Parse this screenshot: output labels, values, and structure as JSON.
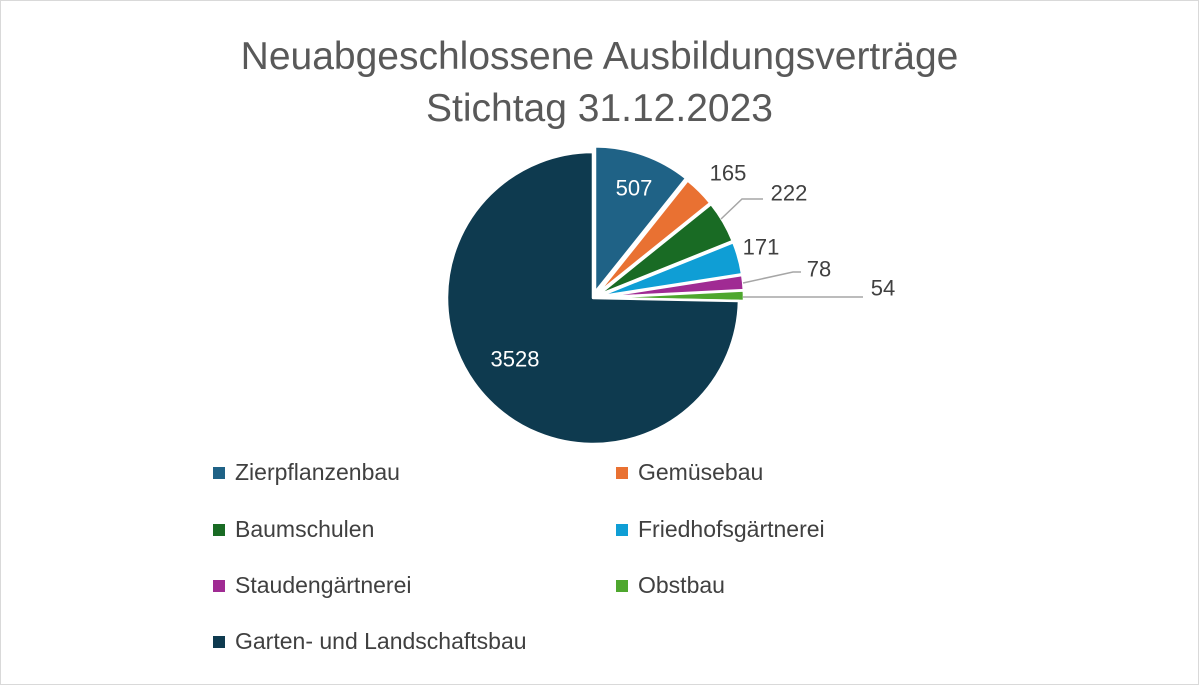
{
  "title": "Neuabgeschlossene Ausbildungsverträge",
  "subtitle": "Stichtag 31.12.2023",
  "chart_data": {
    "type": "pie",
    "title": "Neuabgeschlossene Ausbildungsverträge",
    "subtitle": "Stichtag 31.12.2023",
    "legend_position": "bottom",
    "slices": [
      {
        "label": "Zierpflanzenbau",
        "value": 507,
        "color": "#1f6286"
      },
      {
        "label": "Gemüsebau",
        "value": 165,
        "color": "#e97132"
      },
      {
        "label": "Baumschulen",
        "value": 222,
        "color": "#196b24"
      },
      {
        "label": "Friedhofsgärtnerei",
        "value": 171,
        "color": "#0f9ed5"
      },
      {
        "label": "Staudengärtnerei",
        "value": 78,
        "color": "#a02b93"
      },
      {
        "label": "Obstbau",
        "value": 54,
        "color": "#4ea72e"
      },
      {
        "label": "Garten- und Landschaftsbau",
        "value": 3528,
        "color": "#0e3a4f"
      }
    ]
  }
}
